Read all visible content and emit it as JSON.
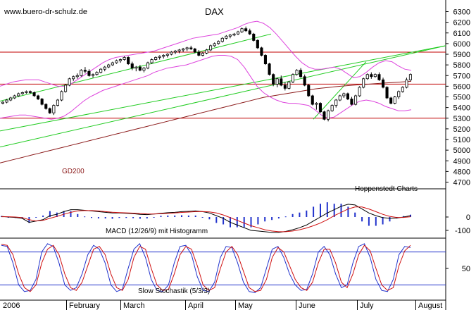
{
  "header": {
    "site": "www.buero-dr-schulz.de"
  },
  "chart_data": [
    {
      "type": "line",
      "title": "DAX",
      "y_ticks": [
        4700,
        4800,
        4900,
        5000,
        5100,
        5200,
        5300,
        5400,
        5500,
        5600,
        5700,
        5800,
        5900,
        6000,
        6100,
        6200,
        6300
      ],
      "ylim": [
        4650,
        6370
      ],
      "x_ticks": [
        "2006",
        "February",
        "March",
        "April",
        "May",
        "June",
        "July",
        "August"
      ],
      "candles": [
        [
          5440,
          5460,
          5430,
          5450
        ],
        [
          5450,
          5480,
          5440,
          5470
        ],
        [
          5470,
          5500,
          5460,
          5490
        ],
        [
          5490,
          5520,
          5480,
          5510
        ],
        [
          5510,
          5540,
          5500,
          5530
        ],
        [
          5530,
          5550,
          5520,
          5540
        ],
        [
          5540,
          5560,
          5530,
          5550
        ],
        [
          5550,
          5560,
          5530,
          5540
        ],
        [
          5540,
          5550,
          5500,
          5510
        ],
        [
          5510,
          5520,
          5470,
          5480
        ],
        [
          5480,
          5490,
          5420,
          5430
        ],
        [
          5430,
          5440,
          5380,
          5390
        ],
        [
          5390,
          5400,
          5340,
          5350
        ],
        [
          5350,
          5430,
          5330,
          5420
        ],
        [
          5420,
          5480,
          5410,
          5470
        ],
        [
          5470,
          5560,
          5460,
          5550
        ],
        [
          5550,
          5620,
          5540,
          5610
        ],
        [
          5610,
          5680,
          5600,
          5670
        ],
        [
          5670,
          5700,
          5650,
          5690
        ],
        [
          5690,
          5720,
          5670,
          5700
        ],
        [
          5700,
          5760,
          5690,
          5750
        ],
        [
          5750,
          5780,
          5720,
          5740
        ],
        [
          5740,
          5760,
          5690,
          5700
        ],
        [
          5700,
          5720,
          5680,
          5710
        ],
        [
          5710,
          5740,
          5700,
          5730
        ],
        [
          5730,
          5770,
          5720,
          5760
        ],
        [
          5760,
          5790,
          5740,
          5780
        ],
        [
          5780,
          5810,
          5770,
          5800
        ],
        [
          5800,
          5830,
          5790,
          5820
        ],
        [
          5820,
          5850,
          5810,
          5840
        ],
        [
          5840,
          5860,
          5820,
          5850
        ],
        [
          5850,
          5880,
          5840,
          5870
        ],
        [
          5870,
          5880,
          5800,
          5810
        ],
        [
          5810,
          5830,
          5750,
          5770
        ],
        [
          5770,
          5790,
          5740,
          5780
        ],
        [
          5780,
          5800,
          5740,
          5750
        ],
        [
          5750,
          5780,
          5730,
          5770
        ],
        [
          5770,
          5830,
          5760,
          5820
        ],
        [
          5820,
          5860,
          5810,
          5850
        ],
        [
          5850,
          5880,
          5840,
          5870
        ],
        [
          5870,
          5890,
          5850,
          5880
        ],
        [
          5880,
          5900,
          5860,
          5890
        ],
        [
          5890,
          5910,
          5870,
          5900
        ],
        [
          5900,
          5930,
          5890,
          5920
        ],
        [
          5920,
          5940,
          5900,
          5930
        ],
        [
          5930,
          5950,
          5910,
          5940
        ],
        [
          5940,
          5960,
          5920,
          5950
        ],
        [
          5950,
          5970,
          5930,
          5960
        ],
        [
          5960,
          5980,
          5940,
          5950
        ],
        [
          5950,
          5960,
          5910,
          5920
        ],
        [
          5920,
          5940,
          5880,
          5890
        ],
        [
          5890,
          5920,
          5880,
          5910
        ],
        [
          5910,
          5950,
          5900,
          5940
        ],
        [
          5940,
          5990,
          5930,
          5980
        ],
        [
          5980,
          6010,
          5970,
          6000
        ],
        [
          6000,
          6030,
          5990,
          6020
        ],
        [
          6020,
          6060,
          6010,
          6050
        ],
        [
          6050,
          6080,
          6040,
          6070
        ],
        [
          6070,
          6090,
          6050,
          6080
        ],
        [
          6080,
          6100,
          6070,
          6090
        ],
        [
          6090,
          6120,
          6080,
          6110
        ],
        [
          6110,
          6150,
          6100,
          6140
        ],
        [
          6140,
          6160,
          6110,
          6120
        ],
        [
          6120,
          6140,
          6080,
          6090
        ],
        [
          6090,
          6100,
          6020,
          6030
        ],
        [
          6030,
          6040,
          5950,
          5960
        ],
        [
          5960,
          5970,
          5880,
          5890
        ],
        [
          5890,
          5900,
          5800,
          5810
        ],
        [
          5810,
          5820,
          5700,
          5710
        ],
        [
          5710,
          5720,
          5600,
          5620
        ],
        [
          5620,
          5680,
          5590,
          5670
        ],
        [
          5670,
          5700,
          5600,
          5610
        ],
        [
          5610,
          5640,
          5560,
          5580
        ],
        [
          5580,
          5650,
          5570,
          5640
        ],
        [
          5640,
          5720,
          5630,
          5710
        ],
        [
          5710,
          5760,
          5700,
          5750
        ],
        [
          5750,
          5770,
          5680,
          5690
        ],
        [
          5690,
          5710,
          5600,
          5610
        ],
        [
          5610,
          5620,
          5500,
          5510
        ],
        [
          5510,
          5520,
          5420,
          5430
        ],
        [
          5430,
          5450,
          5380,
          5440
        ],
        [
          5440,
          5450,
          5350,
          5360
        ],
        [
          5360,
          5370,
          5280,
          5290
        ],
        [
          5290,
          5380,
          5270,
          5370
        ],
        [
          5370,
          5430,
          5360,
          5420
        ],
        [
          5420,
          5480,
          5400,
          5470
        ],
        [
          5470,
          5520,
          5460,
          5510
        ],
        [
          5510,
          5540,
          5490,
          5530
        ],
        [
          5530,
          5540,
          5470,
          5480
        ],
        [
          5480,
          5500,
          5420,
          5430
        ],
        [
          5430,
          5520,
          5420,
          5510
        ],
        [
          5510,
          5600,
          5500,
          5590
        ],
        [
          5590,
          5680,
          5580,
          5670
        ],
        [
          5670,
          5720,
          5660,
          5710
        ],
        [
          5710,
          5730,
          5670,
          5690
        ],
        [
          5690,
          5720,
          5680,
          5710
        ],
        [
          5710,
          5730,
          5650,
          5660
        ],
        [
          5660,
          5680,
          5580,
          5590
        ],
        [
          5590,
          5600,
          5480,
          5490
        ],
        [
          5490,
          5500,
          5430,
          5440
        ],
        [
          5440,
          5510,
          5430,
          5500
        ],
        [
          5500,
          5560,
          5480,
          5550
        ],
        [
          5550,
          5600,
          5540,
          5590
        ],
        [
          5590,
          5680,
          5580,
          5660
        ],
        [
          5660,
          5720,
          5650,
          5710
        ]
      ],
      "series": [
        {
          "name": "GD200",
          "color": "#8b1a1a",
          "values": [
            4880,
            4895,
            4910,
            4925,
            4940,
            4955,
            4970,
            4985,
            5000,
            5015,
            5030,
            5045,
            5060,
            5075,
            5090,
            5105,
            5120,
            5135,
            5150,
            5165,
            5180,
            5195,
            5210,
            5225,
            5240,
            5255,
            5270,
            5285,
            5300,
            5315,
            5330,
            5345,
            5360,
            5375,
            5390,
            5405,
            5420,
            5435,
            5450,
            5465,
            5480,
            5495,
            5505,
            5515,
            5525,
            5535,
            5545,
            5555,
            5565,
            5575,
            5582,
            5588,
            5594,
            5600,
            5605,
            5610,
            5614,
            5618,
            5622,
            5626,
            5630,
            5634,
            5638,
            5642,
            5646
          ]
        },
        {
          "color": "#dd44dd",
          "values": [
            5600,
            5620,
            5640,
            5650,
            5660,
            5660,
            5660,
            5640,
            5620,
            5600,
            5600,
            5620,
            5660,
            5700,
            5740,
            5780,
            5820,
            5850,
            5870,
            5880,
            5890,
            5900,
            5910,
            5920,
            5930,
            5950,
            5970,
            5990,
            6010,
            6030,
            6050,
            6060,
            6070,
            6080,
            6090,
            6110,
            6130,
            6150,
            6180,
            6200,
            6210,
            6190,
            6150,
            6090,
            6020,
            5950,
            5880,
            5820,
            5780,
            5760,
            5760,
            5770,
            5780,
            5760,
            5720,
            5680,
            5690,
            5730,
            5780,
            5820,
            5840,
            5830,
            5790,
            5760,
            5750
          ]
        },
        {
          "color": "#dd44dd",
          "values": [
            5300,
            5310,
            5320,
            5330,
            5330,
            5320,
            5310,
            5300,
            5290,
            5300,
            5320,
            5360,
            5410,
            5460,
            5500,
            5530,
            5560,
            5580,
            5600,
            5620,
            5640,
            5660,
            5680,
            5700,
            5730,
            5750,
            5770,
            5780,
            5790,
            5800,
            5820,
            5840,
            5860,
            5880,
            5890,
            5890,
            5880,
            5850,
            5780,
            5690,
            5600,
            5540,
            5500,
            5470,
            5450,
            5440,
            5440,
            5430,
            5420,
            5380,
            5330,
            5300,
            5310,
            5350,
            5390,
            5430,
            5460,
            5470,
            5460,
            5440,
            5410,
            5390,
            5370,
            5370,
            5380
          ]
        }
      ],
      "channel_lines": [
        5300,
        5620,
        5920
      ],
      "annotations": [
        "GD200",
        "Hoppenstedt Charts"
      ]
    },
    {
      "type": "line",
      "title": "MACD (12/26/9) mit Histogramm",
      "y_ticks": [
        0,
        -100
      ],
      "series": [
        {
          "values": [
            5,
            0,
            -3,
            -10,
            -40,
            -30,
            -20,
            10,
            20,
            40,
            55,
            55,
            50,
            45,
            40,
            35,
            30,
            30,
            28,
            25,
            20,
            18,
            22,
            28,
            32,
            35,
            40,
            42,
            45,
            40,
            30,
            10,
            -10,
            -40,
            -60,
            -80,
            -100,
            -105,
            -110,
            -115,
            -115,
            -108,
            -95,
            -80,
            -60,
            -30,
            0,
            30,
            55,
            80,
            95,
            90,
            60,
            30,
            10,
            -5,
            -10,
            -8,
            0,
            10
          ]
        },
        {
          "values": [
            2,
            2,
            0,
            -5,
            -20,
            -30,
            -25,
            -10,
            5,
            20,
            35,
            45,
            48,
            48,
            45,
            40,
            36,
            33,
            31,
            29,
            26,
            23,
            22,
            24,
            27,
            30,
            34,
            37,
            40,
            41,
            38,
            30,
            15,
            -5,
            -25,
            -45,
            -65,
            -80,
            -95,
            -105,
            -110,
            -110,
            -105,
            -95,
            -82,
            -65,
            -45,
            -20,
            10,
            35,
            60,
            75,
            75,
            60,
            40,
            20,
            5,
            -3,
            -3,
            2
          ]
        }
      ],
      "series_colors": [
        "#000000",
        "#d01010"
      ],
      "histogram_color": "#2233cc"
    },
    {
      "type": "line",
      "title": "Slow Stochastik (5/3/3)",
      "y_ticks": [
        50
      ],
      "levels": [
        20,
        80
      ],
      "series": [
        {
          "values": [
            92,
            90,
            60,
            20,
            8,
            10,
            30,
            80,
            95,
            90,
            60,
            20,
            10,
            15,
            40,
            75,
            92,
            85,
            60,
            20,
            8,
            12,
            50,
            85,
            95,
            70,
            30,
            10,
            8,
            20,
            60,
            90,
            92,
            75,
            35,
            10,
            8,
            25,
            70,
            90,
            88,
            60,
            25,
            8,
            6,
            15,
            50,
            85,
            90,
            70,
            40,
            20,
            10,
            12,
            40,
            80,
            90,
            75,
            40,
            15,
            20,
            60,
            90,
            95,
            70,
            30,
            10,
            8,
            30,
            75,
            90,
            88
          ]
        },
        {
          "values": [
            94,
            92,
            75,
            40,
            15,
            8,
            20,
            60,
            85,
            92,
            75,
            40,
            15,
            10,
            25,
            55,
            85,
            90,
            75,
            40,
            15,
            10,
            30,
            70,
            90,
            85,
            50,
            20,
            10,
            12,
            40,
            75,
            90,
            85,
            55,
            20,
            10,
            15,
            50,
            80,
            90,
            75,
            45,
            15,
            8,
            10,
            30,
            70,
            88,
            80,
            55,
            30,
            15,
            10,
            25,
            60,
            85,
            85,
            60,
            25,
            15,
            40,
            75,
            92,
            82,
            50,
            20,
            10,
            15,
            55,
            82,
            92
          ]
        }
      ],
      "series_colors": [
        "#2233cc",
        "#d01010"
      ]
    }
  ]
}
